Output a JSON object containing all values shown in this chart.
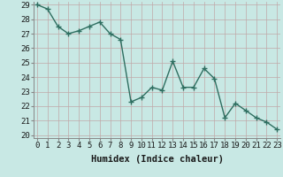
{
  "title": "",
  "xlabel": "Humidex (Indice chaleur)",
  "ylabel": "",
  "x": [
    0,
    1,
    2,
    3,
    4,
    5,
    6,
    7,
    8,
    9,
    10,
    11,
    12,
    13,
    14,
    15,
    16,
    17,
    18,
    19,
    20,
    21,
    22,
    23
  ],
  "y": [
    29.0,
    28.7,
    27.5,
    27.0,
    27.2,
    27.5,
    27.8,
    27.0,
    26.6,
    22.3,
    22.6,
    23.3,
    23.1,
    25.1,
    23.3,
    23.3,
    24.6,
    23.9,
    21.2,
    22.2,
    21.7,
    21.2,
    20.9,
    20.4
  ],
  "line_color": "#2e6e60",
  "bg_color": "#c8e8e4",
  "grid_color": "#c0a8a8",
  "ylim": [
    20,
    29
  ],
  "xlim": [
    -0.3,
    23.3
  ],
  "yticks": [
    20,
    21,
    22,
    23,
    24,
    25,
    26,
    27,
    28,
    29
  ],
  "xticks": [
    0,
    1,
    2,
    3,
    4,
    5,
    6,
    7,
    8,
    9,
    10,
    11,
    12,
    13,
    14,
    15,
    16,
    17,
    18,
    19,
    20,
    21,
    22,
    23
  ],
  "xlabel_fontsize": 7.5,
  "tick_fontsize": 6.5,
  "marker": "P",
  "marker_size": 2.5,
  "line_width": 1.0
}
